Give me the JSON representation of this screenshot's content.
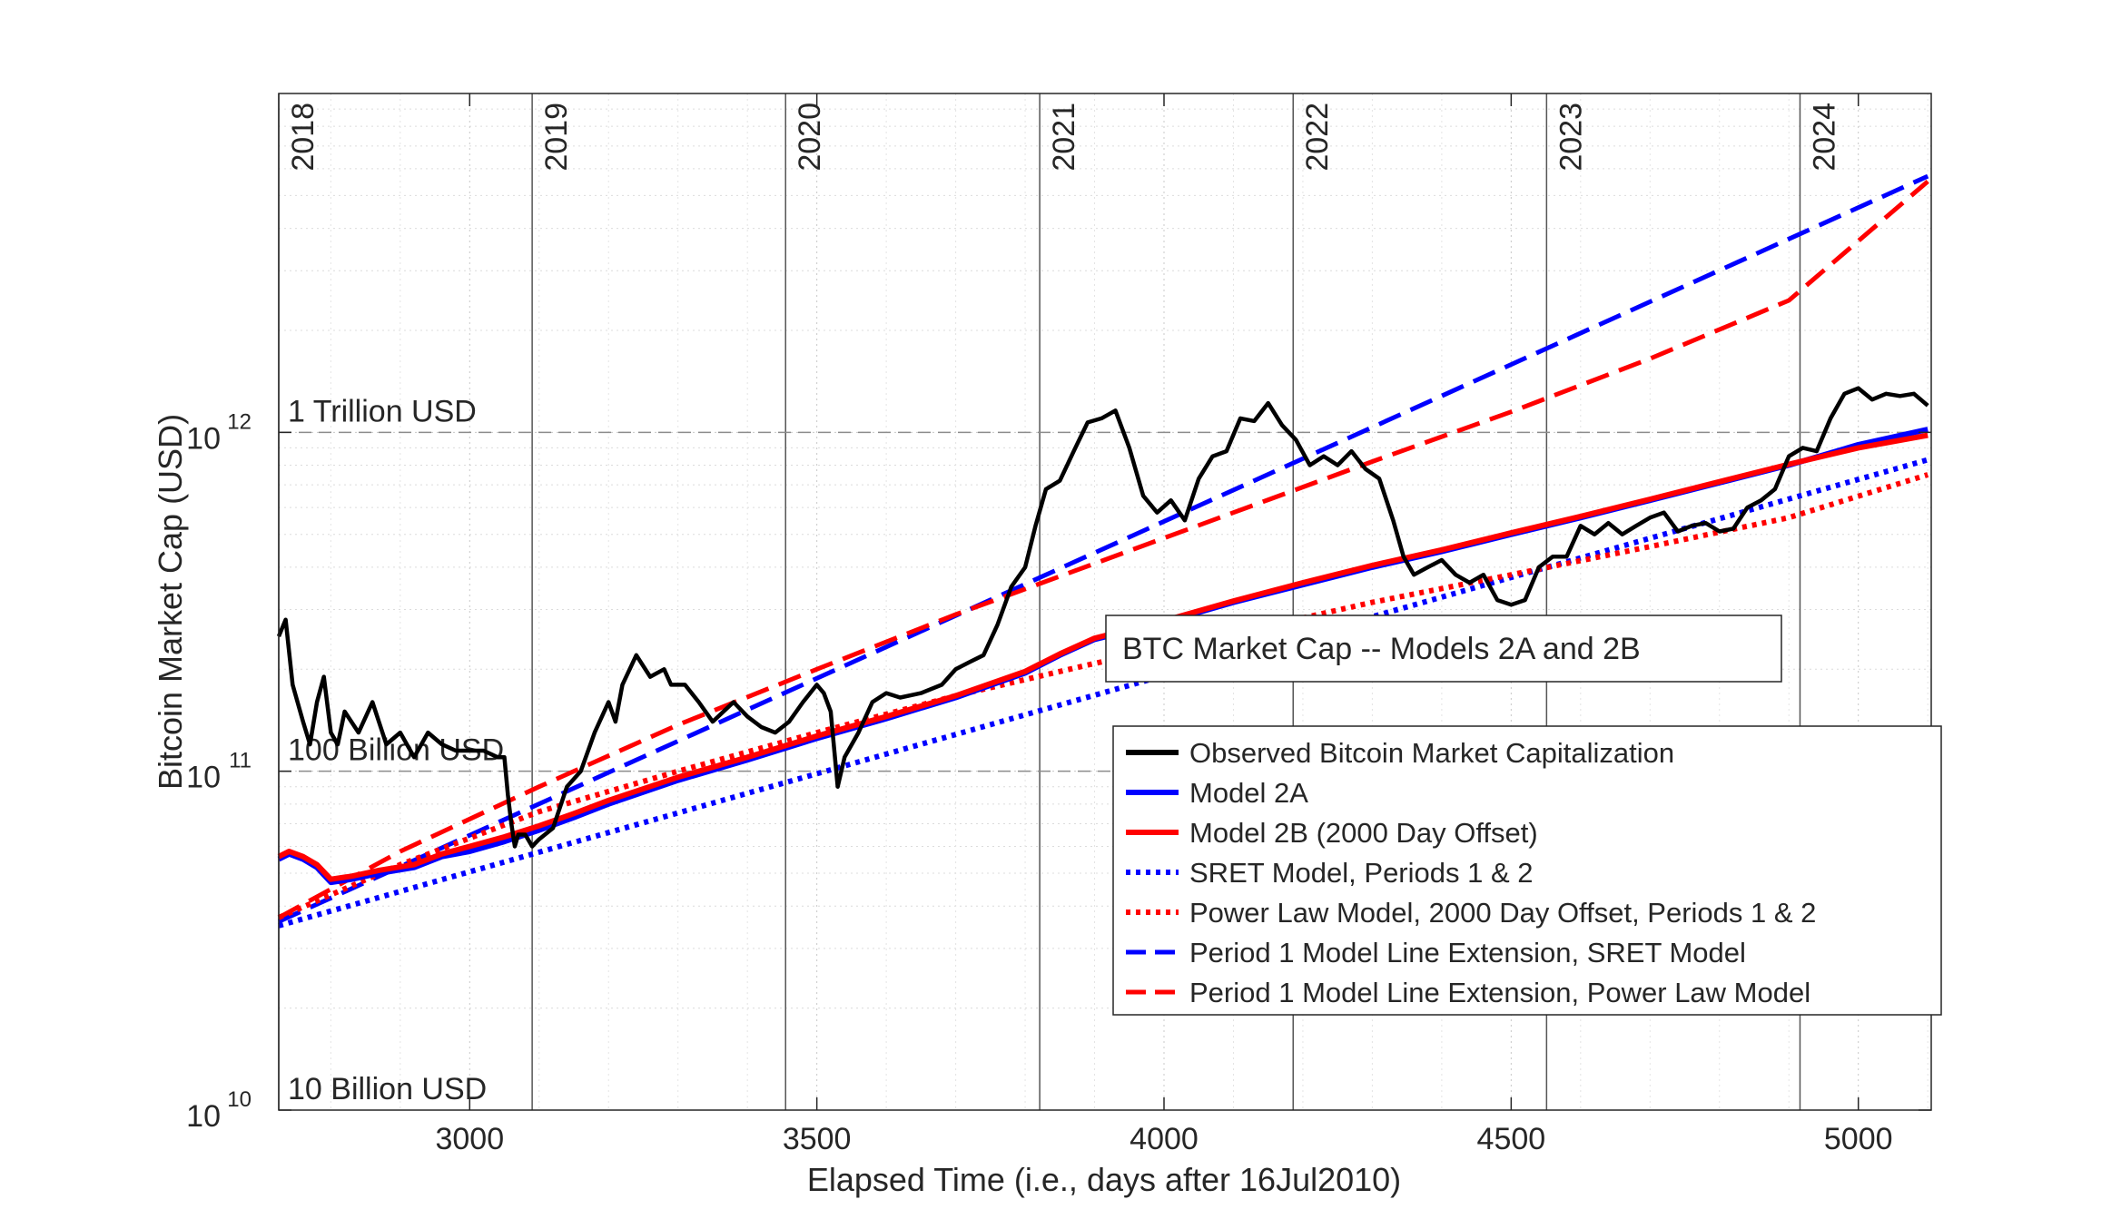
{
  "chart_data": {
    "type": "line",
    "title": "BTC Market Cap -- Models 2A and 2B",
    "xlabel": "Elapsed Time (i.e., days after 16Jul2010)",
    "ylabel": "Bitcoin Market Cap (USD)",
    "xlim": [
      2725,
      5105
    ],
    "ylim": [
      10000000000.0,
      10000000000000.0
    ],
    "yscale": "log",
    "grid": true,
    "legend_position": "bottom-right",
    "x_ticks": [
      3000,
      3500,
      4000,
      4500,
      5000
    ],
    "x_tick_labels": [
      "3000",
      "3500",
      "4000",
      "4500",
      "5000"
    ],
    "y_ticks": [
      10000000000.0,
      100000000000.0,
      1000000000000.0
    ],
    "y_tick_labels": [
      {
        "base": "10",
        "exp": "10"
      },
      {
        "base": "10",
        "exp": "11"
      },
      {
        "base": "10",
        "exp": "12"
      }
    ],
    "year_markers": [
      {
        "label": "2018",
        "x": 2725
      },
      {
        "label": "2019",
        "x": 3090
      },
      {
        "label": "2020",
        "x": 3455
      },
      {
        "label": "2021",
        "x": 3821
      },
      {
        "label": "2022",
        "x": 4186
      },
      {
        "label": "2023",
        "x": 4551
      },
      {
        "label": "2024",
        "x": 4916
      }
    ],
    "reference_lines": [
      {
        "label": "1 Trillion USD",
        "y": 1000000000000.0
      },
      {
        "label": "100 Billion USD",
        "y": 100000000000.0
      },
      {
        "label": "10 Billion USD",
        "y": 10000000000.0
      }
    ],
    "series": [
      {
        "name": "Observed Bitcoin Market Capitalization",
        "color": "#000000",
        "style": "solid",
        "x": [
          2725,
          2735,
          2745,
          2760,
          2770,
          2780,
          2790,
          2800,
          2810,
          2820,
          2840,
          2860,
          2880,
          2900,
          2920,
          2940,
          2960,
          2980,
          3000,
          3020,
          3040,
          3050,
          3055,
          3060,
          3065,
          3070,
          3080,
          3090,
          3100,
          3120,
          3140,
          3160,
          3180,
          3200,
          3210,
          3220,
          3240,
          3260,
          3280,
          3290,
          3310,
          3330,
          3350,
          3380,
          3400,
          3420,
          3440,
          3460,
          3480,
          3500,
          3510,
          3520,
          3530,
          3540,
          3560,
          3580,
          3600,
          3620,
          3650,
          3680,
          3700,
          3720,
          3740,
          3760,
          3780,
          3800,
          3815,
          3830,
          3850,
          3870,
          3890,
          3910,
          3930,
          3950,
          3970,
          3990,
          4010,
          4030,
          4050,
          4070,
          4090,
          4110,
          4130,
          4150,
          4170,
          4190,
          4210,
          4230,
          4250,
          4270,
          4290,
          4310,
          4330,
          4345,
          4360,
          4380,
          4400,
          4420,
          4440,
          4460,
          4480,
          4500,
          4520,
          4540,
          4560,
          4580,
          4600,
          4620,
          4640,
          4660,
          4680,
          4700,
          4720,
          4740,
          4760,
          4780,
          4800,
          4820,
          4840,
          4860,
          4880,
          4900,
          4920,
          4940,
          4960,
          4980,
          5000,
          5020,
          5040,
          5060,
          5080,
          5100
        ],
        "y": [
          250000000000.0,
          280000000000.0,
          180000000000.0,
          140000000000.0,
          120000000000.0,
          160000000000.0,
          190000000000.0,
          130000000000.0,
          120000000000.0,
          150000000000.0,
          130000000000.0,
          160000000000.0,
          120000000000.0,
          130000000000.0,
          110000000000.0,
          130000000000.0,
          120000000000.0,
          115000000000.0,
          115000000000.0,
          115000000000.0,
          110000000000.0,
          110000000000.0,
          85000000000.0,
          70000000000.0,
          60000000000.0,
          65000000000.0,
          65000000000.0,
          60000000000.0,
          63000000000.0,
          68000000000.0,
          90000000000.0,
          100000000000.0,
          130000000000.0,
          160000000000.0,
          140000000000.0,
          180000000000.0,
          220000000000.0,
          190000000000.0,
          200000000000.0,
          180000000000.0,
          180000000000.0,
          160000000000.0,
          140000000000.0,
          160000000000.0,
          145000000000.0,
          135000000000.0,
          130000000000.0,
          140000000000.0,
          160000000000.0,
          180000000000.0,
          170000000000.0,
          150000000000.0,
          90000000000.0,
          110000000000.0,
          130000000000.0,
          160000000000.0,
          170000000000.0,
          165000000000.0,
          170000000000.0,
          180000000000.0,
          200000000000.0,
          210000000000.0,
          220000000000.0,
          270000000000.0,
          350000000000.0,
          400000000000.0,
          530000000000.0,
          680000000000.0,
          720000000000.0,
          880000000000.0,
          1070000000000.0,
          1100000000000.0,
          1160000000000.0,
          900000000000.0,
          650000000000.0,
          580000000000.0,
          630000000000.0,
          550000000000.0,
          730000000000.0,
          850000000000.0,
          880000000000.0,
          1100000000000.0,
          1080000000000.0,
          1220000000000.0,
          1050000000000.0,
          950000000000.0,
          800000000000.0,
          850000000000.0,
          800000000000.0,
          880000000000.0,
          780000000000.0,
          730000000000.0,
          550000000000.0,
          430000000000.0,
          380000000000.0,
          400000000000.0,
          420000000000.0,
          380000000000.0,
          360000000000.0,
          380000000000.0,
          320000000000.0,
          310000000000.0,
          320000000000.0,
          400000000000.0,
          430000000000.0,
          430000000000.0,
          530000000000.0,
          500000000000.0,
          540000000000.0,
          500000000000.0,
          530000000000.0,
          560000000000.0,
          580000000000.0,
          510000000000.0,
          530000000000.0,
          540000000000.0,
          510000000000.0,
          520000000000.0,
          600000000000.0,
          630000000000.0,
          680000000000.0,
          850000000000.0,
          900000000000.0,
          880000000000.0,
          1100000000000.0,
          1300000000000.0,
          1350000000000.0,
          1250000000000.0,
          1300000000000.0,
          1280000000000.0,
          1300000000000.0,
          1200000000000.0
        ]
      },
      {
        "name": "Model 2A",
        "color": "#0000ff",
        "style": "solid",
        "x": [
          2725,
          2740,
          2760,
          2780,
          2800,
          2830,
          2870,
          2920,
          2960,
          3000,
          3050,
          3100,
          3150,
          3200,
          3300,
          3400,
          3500,
          3600,
          3700,
          3800,
          3850,
          3900,
          4000,
          4100,
          4200,
          4300,
          4400,
          4500,
          4600,
          4700,
          4800,
          4900,
          5000,
          5100
        ],
        "y": [
          55000000000.0,
          57000000000.0,
          55000000000.0,
          52000000000.0,
          47000000000.0,
          48000000000.0,
          50000000000.0,
          52000000000.0,
          56000000000.0,
          58000000000.0,
          62000000000.0,
          67000000000.0,
          73000000000.0,
          80000000000.0,
          94000000000.0,
          108000000000.0,
          125000000000.0,
          143000000000.0,
          165000000000.0,
          195000000000.0,
          220000000000.0,
          245000000000.0,
          275000000000.0,
          315000000000.0,
          355000000000.0,
          400000000000.0,
          445000000000.0,
          500000000000.0,
          560000000000.0,
          630000000000.0,
          710000000000.0,
          800000000000.0,
          920000000000.0,
          1020000000000.0
        ]
      },
      {
        "name": "Model 2B (2000 Day Offset)",
        "color": "#ff0000",
        "style": "solid",
        "x": [
          2725,
          2740,
          2760,
          2780,
          2800,
          2830,
          2870,
          2920,
          2960,
          3000,
          3050,
          3100,
          3150,
          3200,
          3300,
          3400,
          3500,
          3600,
          3700,
          3800,
          3850,
          3900,
          4000,
          4100,
          4200,
          4300,
          4400,
          4500,
          4600,
          4700,
          4800,
          4900,
          5000,
          5100
        ],
        "y": [
          56000000000.0,
          58000000000.0,
          56000000000.0,
          53000000000.0,
          48000000000.0,
          49000000000.0,
          51000000000.0,
          53000000000.0,
          57000000000.0,
          60000000000.0,
          64000000000.0,
          69000000000.0,
          75000000000.0,
          82000000000.0,
          96000000000.0,
          110000000000.0,
          127000000000.0,
          145000000000.0,
          167000000000.0,
          197000000000.0,
          222000000000.0,
          247000000000.0,
          278000000000.0,
          318000000000.0,
          360000000000.0,
          405000000000.0,
          450000000000.0,
          505000000000.0,
          565000000000.0,
          635000000000.0,
          715000000000.0,
          805000000000.0,
          900000000000.0,
          980000000000.0
        ]
      },
      {
        "name": "SRET Model, Periods 1 & 2",
        "color": "#0000ff",
        "style": "dotted",
        "x": [
          2725,
          5100
        ],
        "y": [
          35000000000.0,
          830000000000.0
        ]
      },
      {
        "name": "Power Law Model, 2000 Day Offset, Periods 1 & 2",
        "color": "#ff0000",
        "style": "dotted",
        "x": [
          2725,
          2900,
          3100,
          3300,
          3500,
          3700,
          3900,
          4100,
          4300,
          4500,
          4700,
          4900,
          5100
        ],
        "y": [
          37000000000.0,
          53000000000.0,
          76000000000.0,
          100000000000.0,
          130000000000.0,
          167000000000.0,
          208000000000.0,
          255000000000.0,
          315000000000.0,
          380000000000.0,
          460000000000.0,
          560000000000.0,
          750000000000.0
        ]
      },
      {
        "name": "Period 1 Model Line Extension, SRET Model",
        "color": "#0000ff",
        "style": "dashed",
        "x": [
          2725,
          5100
        ],
        "y": [
          36000000000.0,
          5700000000000.0
        ]
      },
      {
        "name": "Period 1 Model Line Extension, Power Law Model",
        "color": "#ff0000",
        "style": "dashed",
        "x": [
          2725,
          2900,
          3100,
          3300,
          3500,
          3700,
          3900,
          4100,
          4300,
          4500,
          4700,
          4900,
          5100
        ],
        "y": [
          37000000000.0,
          58000000000.0,
          90000000000.0,
          137000000000.0,
          200000000000.0,
          290000000000.0,
          410000000000.0,
          580000000000.0,
          820000000000.0,
          1150000000000.0,
          1650000000000.0,
          2450000000000.0,
          5500000000000.0
        ]
      }
    ]
  }
}
